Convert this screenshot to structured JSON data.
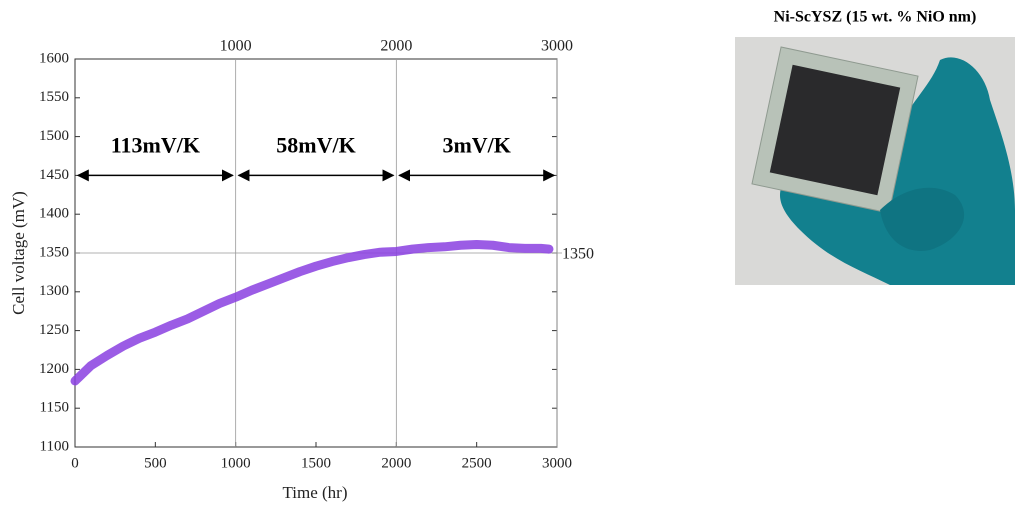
{
  "chart_data": {
    "type": "line",
    "x_label": "Time (hr)",
    "y_label": "Cell voltage (mV)",
    "x": [
      0,
      100,
      200,
      300,
      400,
      500,
      600,
      700,
      800,
      900,
      1000,
      1100,
      1200,
      1300,
      1400,
      1500,
      1600,
      1700,
      1800,
      1900,
      2000,
      2100,
      2200,
      2300,
      2400,
      2500,
      2600,
      2700,
      2800,
      2900,
      2950
    ],
    "series": [
      {
        "color": "#8a3fe0",
        "values": [
          1185,
          1205,
          1218,
          1230,
          1240,
          1248,
          1257,
          1265,
          1275,
          1285,
          1293,
          1302,
          1310,
          1318,
          1326,
          1333,
          1339,
          1344,
          1348,
          1351,
          1352,
          1355,
          1357,
          1358,
          1360,
          1361,
          1360,
          1357,
          1356,
          1356,
          1355
        ]
      }
    ],
    "xlim": [
      0,
      3000
    ],
    "xticks": [
      0,
      500,
      1000,
      1500,
      2000,
      2500,
      3000
    ],
    "x2ticks": [
      1000,
      2000,
      3000
    ],
    "ylim": [
      1100,
      1600
    ],
    "yticks": [
      1100,
      1150,
      1200,
      1250,
      1300,
      1350,
      1400,
      1450,
      1500,
      1550,
      1600
    ],
    "hline": 1350,
    "annotations": [
      {
        "text": "113mV/K",
        "x": [
          0,
          1000
        ],
        "y": 1450
      },
      {
        "text": "58mV/K",
        "x": [
          1000,
          2000
        ],
        "y": 1450
      },
      {
        "text": "3mV/K",
        "x": [
          2000,
          3000
        ],
        "y": 1450
      }
    ]
  },
  "photo": {
    "title": "Ni-ScYSZ (15 wt. % NiO nm)"
  }
}
